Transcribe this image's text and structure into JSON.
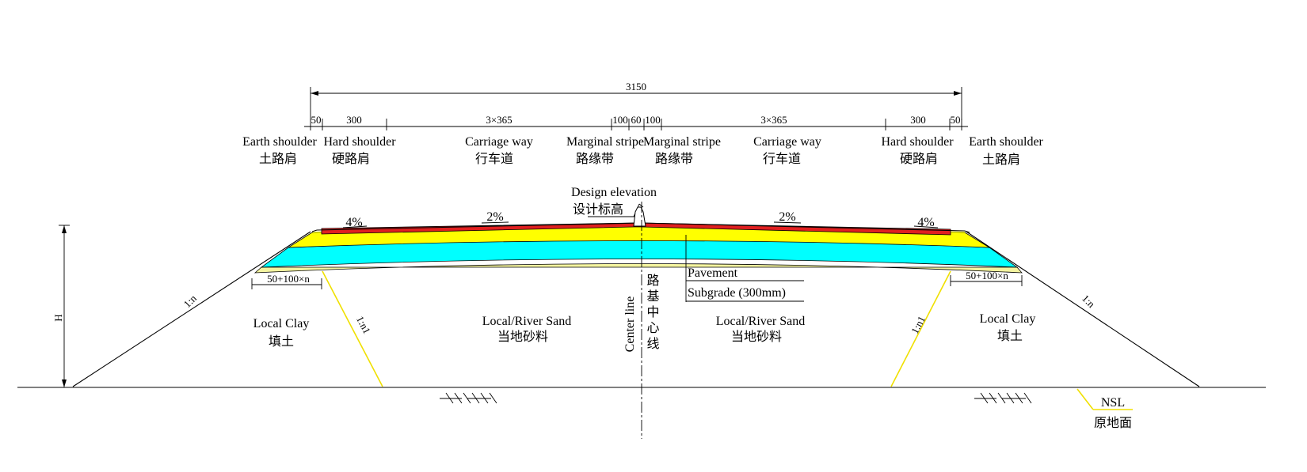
{
  "dimensions": {
    "total": "3150",
    "earth_shoulder": "50",
    "hard_shoulder": "300",
    "carriage_way": "3×365",
    "marginal": "100",
    "median": "60"
  },
  "sections": {
    "earth_shoulder_en": "Earth  shoulder",
    "earth_shoulder_zh": "土路肩",
    "hard_shoulder_en": "Hard  shoulder",
    "hard_shoulder_zh": "硬路肩",
    "carriage_way_en": "Carriage way",
    "carriage_way_zh": "行车道",
    "marginal_stripe_en": "Marginal stripe",
    "marginal_stripe_zh": "路缘带"
  },
  "design_elevation": {
    "en": "Design elevation",
    "zh": "设计标高"
  },
  "slopes": {
    "shoulder": "4%",
    "carriageway": "2%"
  },
  "height_label": "H",
  "embankment_slope": "1:n",
  "inner_slope": "1:n1",
  "offset": "50+100×n",
  "materials": {
    "fill_en": "Local Clay",
    "fill_zh": "填土",
    "core_en": "Local/River Sand",
    "core_zh": "当地砂料"
  },
  "center_line": {
    "en": "Center line",
    "zh": "路基中心线"
  },
  "layers": {
    "pavement": "Pavement",
    "subgrade": "Subgrade (300mm)"
  },
  "ground": {
    "en": "NSL",
    "zh": "原地面"
  },
  "colors": {
    "surface": "#e02020",
    "base": "#ffff00",
    "subbase": "#00ffff",
    "subgrade": "#f4f4a0",
    "inner_slope": "#f0e000"
  }
}
